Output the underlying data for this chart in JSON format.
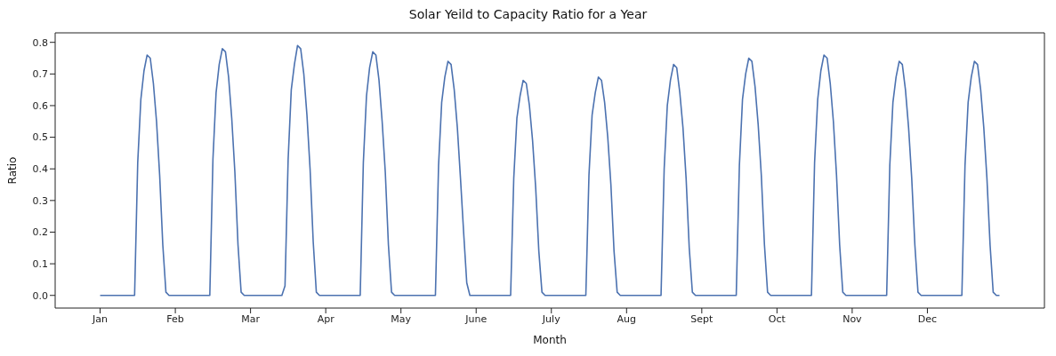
{
  "chart_data": {
    "type": "line",
    "title": "Solar Yeild to Capacity Ratio for a Year",
    "xlabel": "Month",
    "ylabel": "Ratio",
    "color": "#4c72b0",
    "categories": [
      "Jan",
      null,
      null,
      null,
      null,
      null,
      null,
      null,
      null,
      null,
      null,
      null,
      null,
      null,
      null,
      null,
      null,
      null,
      null,
      null,
      null,
      null,
      null,
      null,
      "Feb",
      null,
      null,
      null,
      null,
      null,
      null,
      null,
      null,
      null,
      null,
      null,
      null,
      null,
      null,
      null,
      null,
      null,
      null,
      null,
      null,
      null,
      null,
      null,
      "Mar",
      null,
      null,
      null,
      null,
      null,
      null,
      null,
      null,
      null,
      null,
      null,
      null,
      null,
      null,
      null,
      null,
      null,
      null,
      null,
      null,
      null,
      null,
      null,
      "Apr",
      null,
      null,
      null,
      null,
      null,
      null,
      null,
      null,
      null,
      null,
      null,
      null,
      null,
      null,
      null,
      null,
      null,
      null,
      null,
      null,
      null,
      null,
      null,
      "May",
      null,
      null,
      null,
      null,
      null,
      null,
      null,
      null,
      null,
      null,
      null,
      null,
      null,
      null,
      null,
      null,
      null,
      null,
      null,
      null,
      null,
      null,
      null,
      "June",
      null,
      null,
      null,
      null,
      null,
      null,
      null,
      null,
      null,
      null,
      null,
      null,
      null,
      null,
      null,
      null,
      null,
      null,
      null,
      null,
      null,
      null,
      null,
      "July",
      null,
      null,
      null,
      null,
      null,
      null,
      null,
      null,
      null,
      null,
      null,
      null,
      null,
      null,
      null,
      null,
      null,
      null,
      null,
      null,
      null,
      null,
      null,
      "Aug",
      null,
      null,
      null,
      null,
      null,
      null,
      null,
      null,
      null,
      null,
      null,
      null,
      null,
      null,
      null,
      null,
      null,
      null,
      null,
      null,
      null,
      null,
      null,
      "Sept",
      null,
      null,
      null,
      null,
      null,
      null,
      null,
      null,
      null,
      null,
      null,
      null,
      null,
      null,
      null,
      null,
      null,
      null,
      null,
      null,
      null,
      null,
      null,
      "Oct",
      null,
      null,
      null,
      null,
      null,
      null,
      null,
      null,
      null,
      null,
      null,
      null,
      null,
      null,
      null,
      null,
      null,
      null,
      null,
      null,
      null,
      null,
      null,
      "Nov",
      null,
      null,
      null,
      null,
      null,
      null,
      null,
      null,
      null,
      null,
      null,
      null,
      null,
      null,
      null,
      null,
      null,
      null,
      null,
      null,
      null,
      null,
      null,
      "Dec",
      null,
      null,
      null,
      null,
      null,
      null,
      null,
      null,
      null,
      null,
      null,
      null,
      null,
      null,
      null,
      null,
      null,
      null,
      null,
      null,
      null,
      null,
      null
    ],
    "values": [
      0,
      0,
      0,
      0,
      0,
      0,
      0,
      0,
      0,
      0,
      0,
      0,
      0.42,
      0.62,
      0.71,
      0.76,
      0.75,
      0.67,
      0.55,
      0.38,
      0.16,
      0.01,
      0,
      0,
      0,
      0,
      0,
      0,
      0,
      0,
      0,
      0,
      0,
      0,
      0,
      0,
      0.43,
      0.64,
      0.73,
      0.78,
      0.77,
      0.69,
      0.56,
      0.39,
      0.16,
      0.01,
      0,
      0,
      0,
      0,
      0,
      0,
      0,
      0,
      0,
      0,
      0,
      0,
      0,
      0.03,
      0.43,
      0.65,
      0.73,
      0.79,
      0.78,
      0.7,
      0.57,
      0.4,
      0.17,
      0.01,
      0,
      0,
      0,
      0,
      0,
      0,
      0,
      0,
      0,
      0,
      0,
      0,
      0,
      0,
      0.42,
      0.63,
      0.72,
      0.77,
      0.76,
      0.68,
      0.55,
      0.39,
      0.16,
      0.01,
      0,
      0,
      0,
      0,
      0,
      0,
      0,
      0,
      0,
      0,
      0,
      0,
      0,
      0,
      0.41,
      0.61,
      0.69,
      0.74,
      0.73,
      0.65,
      0.53,
      0.37,
      0.2,
      0.04,
      0,
      0,
      0,
      0,
      0,
      0,
      0,
      0,
      0,
      0,
      0,
      0,
      0,
      0,
      0.37,
      0.56,
      0.63,
      0.68,
      0.67,
      0.6,
      0.49,
      0.34,
      0.14,
      0.01,
      0,
      0,
      0,
      0,
      0,
      0,
      0,
      0,
      0,
      0,
      0,
      0,
      0,
      0,
      0.38,
      0.57,
      0.64,
      0.69,
      0.68,
      0.61,
      0.5,
      0.35,
      0.14,
      0.01,
      0,
      0,
      0,
      0,
      0,
      0,
      0,
      0,
      0,
      0,
      0,
      0,
      0,
      0,
      0.4,
      0.6,
      0.68,
      0.73,
      0.72,
      0.64,
      0.53,
      0.37,
      0.15,
      0.01,
      0,
      0,
      0,
      0,
      0,
      0,
      0,
      0,
      0,
      0,
      0,
      0,
      0,
      0,
      0.41,
      0.62,
      0.7,
      0.75,
      0.74,
      0.66,
      0.54,
      0.38,
      0.16,
      0.01,
      0,
      0,
      0,
      0,
      0,
      0,
      0,
      0,
      0,
      0,
      0,
      0,
      0,
      0,
      0.42,
      0.62,
      0.71,
      0.76,
      0.75,
      0.67,
      0.55,
      0.38,
      0.16,
      0.01,
      0,
      0,
      0,
      0,
      0,
      0,
      0,
      0,
      0,
      0,
      0,
      0,
      0,
      0,
      0.41,
      0.61,
      0.69,
      0.74,
      0.73,
      0.65,
      0.53,
      0.37,
      0.16,
      0.01,
      0,
      0,
      0,
      0,
      0,
      0,
      0,
      0,
      0,
      0,
      0,
      0,
      0,
      0,
      0.41,
      0.61,
      0.69,
      0.74,
      0.73,
      0.65,
      0.53,
      0.37,
      0.16,
      0.01,
      0,
      0
    ],
    "ylim": [
      -0.04,
      0.83
    ],
    "yticks": [
      {
        "value": 0,
        "label": "0.0"
      },
      {
        "value": 0.1,
        "label": "0.1"
      },
      {
        "value": 0.2,
        "label": "0.2"
      },
      {
        "value": 0.3,
        "label": "0.3"
      },
      {
        "value": 0.4,
        "label": "0.4"
      },
      {
        "value": 0.5,
        "label": "0.5"
      },
      {
        "value": 0.6,
        "label": "0.6"
      },
      {
        "value": 0.7,
        "label": "0.7"
      },
      {
        "value": 0.8,
        "label": "0.8"
      }
    ]
  }
}
